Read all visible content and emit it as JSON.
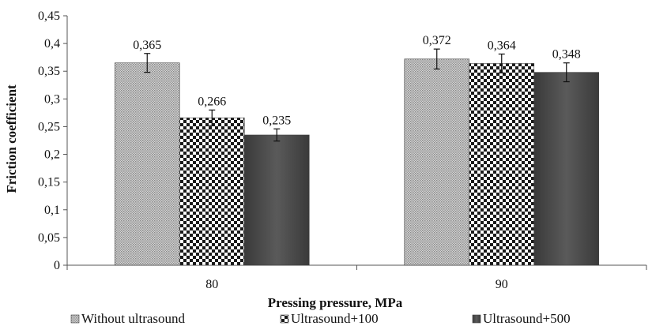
{
  "chart_data": {
    "type": "bar",
    "title": "",
    "xlabel": "Pressing pressure, MPa",
    "ylabel": "Friction coefficient",
    "categories": [
      "80",
      "90"
    ],
    "ylim": [
      0,
      0.45
    ],
    "yticks": [
      0,
      0.05,
      0.1,
      0.15,
      0.2,
      0.25,
      0.3,
      0.35,
      0.4,
      0.45
    ],
    "ytick_labels": [
      "0",
      "0,05",
      "0,1",
      "0,15",
      "0,2",
      "0,25",
      "0,3",
      "0,35",
      "0,4",
      "0,45"
    ],
    "grid": false,
    "legend_position": "bottom",
    "series": [
      {
        "name": "Without ultrasound",
        "values": [
          0.365,
          0.372
        ],
        "labels": [
          "0,365",
          "0,372"
        ],
        "errors": [
          0.017,
          0.018
        ],
        "pattern": "fine-dots",
        "color": "#bdbdbd"
      },
      {
        "name": "Ultrasound+100",
        "values": [
          0.266,
          0.364
        ],
        "labels": [
          "0,266",
          "0,364"
        ],
        "errors": [
          0.014,
          0.017
        ],
        "pattern": "checker",
        "color": "#222222"
      },
      {
        "name": "Ultrasound+500",
        "values": [
          0.235,
          0.348
        ],
        "labels": [
          "0,235",
          "0,348"
        ],
        "errors": [
          0.011,
          0.017
        ],
        "pattern": "solid-dark",
        "color": "#4d4d4d"
      }
    ]
  }
}
